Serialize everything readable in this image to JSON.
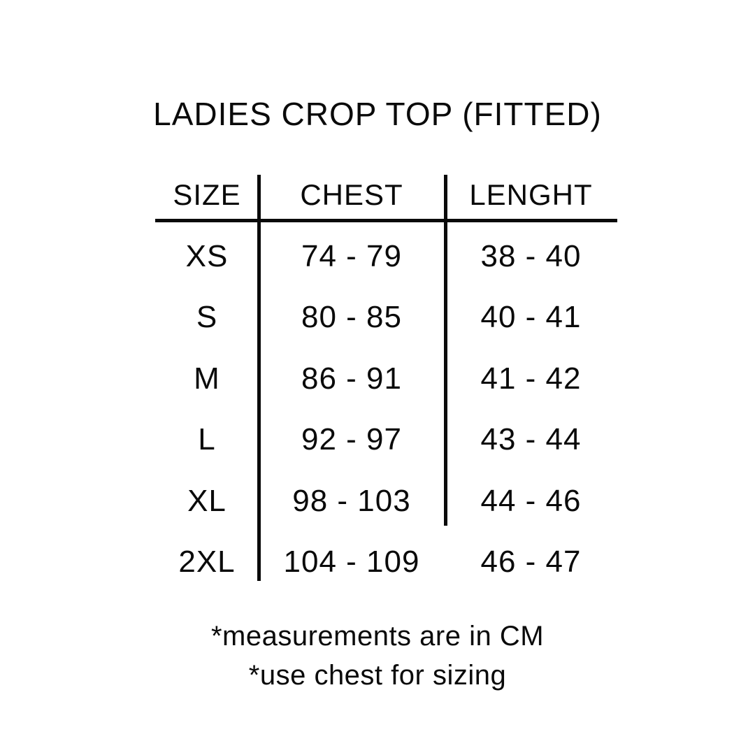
{
  "page": {
    "background": "#ffffff",
    "text_color": "#0a0a0a"
  },
  "chart_data": {
    "type": "table",
    "title": "LADIES CROP TOP (FITTED)",
    "columns": [
      "SIZE",
      "CHEST",
      "LENGHT"
    ],
    "rows": [
      [
        "XS",
        "74 - 79",
        "38 - 40"
      ],
      [
        "S",
        "80 - 85",
        "40 - 41"
      ],
      [
        "M",
        "86 - 91",
        "41 - 42"
      ],
      [
        "L",
        "92 - 97",
        "43 - 44"
      ],
      [
        "XL",
        "98 - 103",
        "44 - 46"
      ],
      [
        "2XL",
        "104 - 109",
        "46 - 47"
      ]
    ],
    "notes": [
      "*measurements are in CM",
      "*use chest for sizing"
    ],
    "layout_hints": {
      "grid": "off",
      "column_dividers": true,
      "header_underline": true
    }
  }
}
